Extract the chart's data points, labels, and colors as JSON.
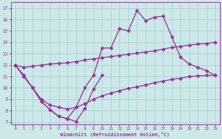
{
  "xlabel": "Windchill (Refroidissement éolien,°C)",
  "xlim": [
    -0.5,
    23.5
  ],
  "ylim": [
    6.8,
    17.5
  ],
  "xticks": [
    0,
    1,
    2,
    3,
    4,
    5,
    6,
    7,
    8,
    9,
    10,
    11,
    12,
    13,
    14,
    15,
    16,
    17,
    18,
    19,
    20,
    21,
    22,
    23
  ],
  "yticks": [
    7,
    8,
    9,
    10,
    11,
    12,
    13,
    14,
    15,
    16,
    17
  ],
  "background_color": "#cce8e8",
  "grid_color": "#aacfcf",
  "line_color": "#993399",
  "line_width": 1.0,
  "marker": "D",
  "marker_size": 2.5,
  "line1_x": [
    0,
    1,
    2,
    3,
    4,
    5,
    6,
    7,
    8,
    9,
    10
  ],
  "line1_y": [
    12.0,
    11.0,
    10.0,
    8.8,
    8.1,
    7.5,
    7.3,
    7.05,
    8.2,
    9.9,
    11.1
  ],
  "line2_x": [
    0,
    1,
    2,
    3,
    4,
    5,
    6,
    7,
    8,
    9,
    10,
    11,
    12,
    13,
    14,
    15,
    16,
    17,
    18,
    19,
    20,
    21,
    22,
    23
  ],
  "line2_y": [
    12.0,
    11.0,
    10.0,
    8.8,
    8.1,
    7.5,
    7.3,
    8.3,
    10.0,
    11.1,
    13.5,
    13.5,
    15.2,
    15.0,
    16.8,
    15.9,
    16.2,
    16.3,
    14.5,
    12.7,
    12.1,
    11.8,
    11.5,
    11.1
  ],
  "line3_x": [
    0,
    1,
    2,
    3,
    4,
    5,
    6,
    7,
    8,
    9,
    10,
    11,
    12,
    13,
    14,
    15,
    16,
    17,
    18,
    19,
    20,
    21,
    22,
    23
  ],
  "line3_y": [
    12.0,
    11.8,
    11.9,
    12.0,
    12.1,
    12.15,
    12.2,
    12.3,
    12.45,
    12.55,
    12.65,
    12.75,
    12.85,
    12.95,
    13.05,
    13.15,
    13.25,
    13.4,
    13.55,
    13.65,
    13.75,
    13.85,
    13.9,
    14.0
  ],
  "line4_x": [
    0,
    1,
    2,
    3,
    4,
    5,
    6,
    7,
    8,
    9,
    10,
    11,
    12,
    13,
    14,
    15,
    16,
    17,
    18,
    19,
    20,
    21,
    22,
    23
  ],
  "line4_y": [
    12.0,
    11.1,
    10.0,
    9.0,
    8.5,
    8.3,
    8.15,
    8.3,
    8.6,
    9.0,
    9.3,
    9.55,
    9.75,
    9.95,
    10.1,
    10.25,
    10.45,
    10.6,
    10.75,
    10.85,
    11.0,
    11.05,
    11.1,
    11.1
  ]
}
